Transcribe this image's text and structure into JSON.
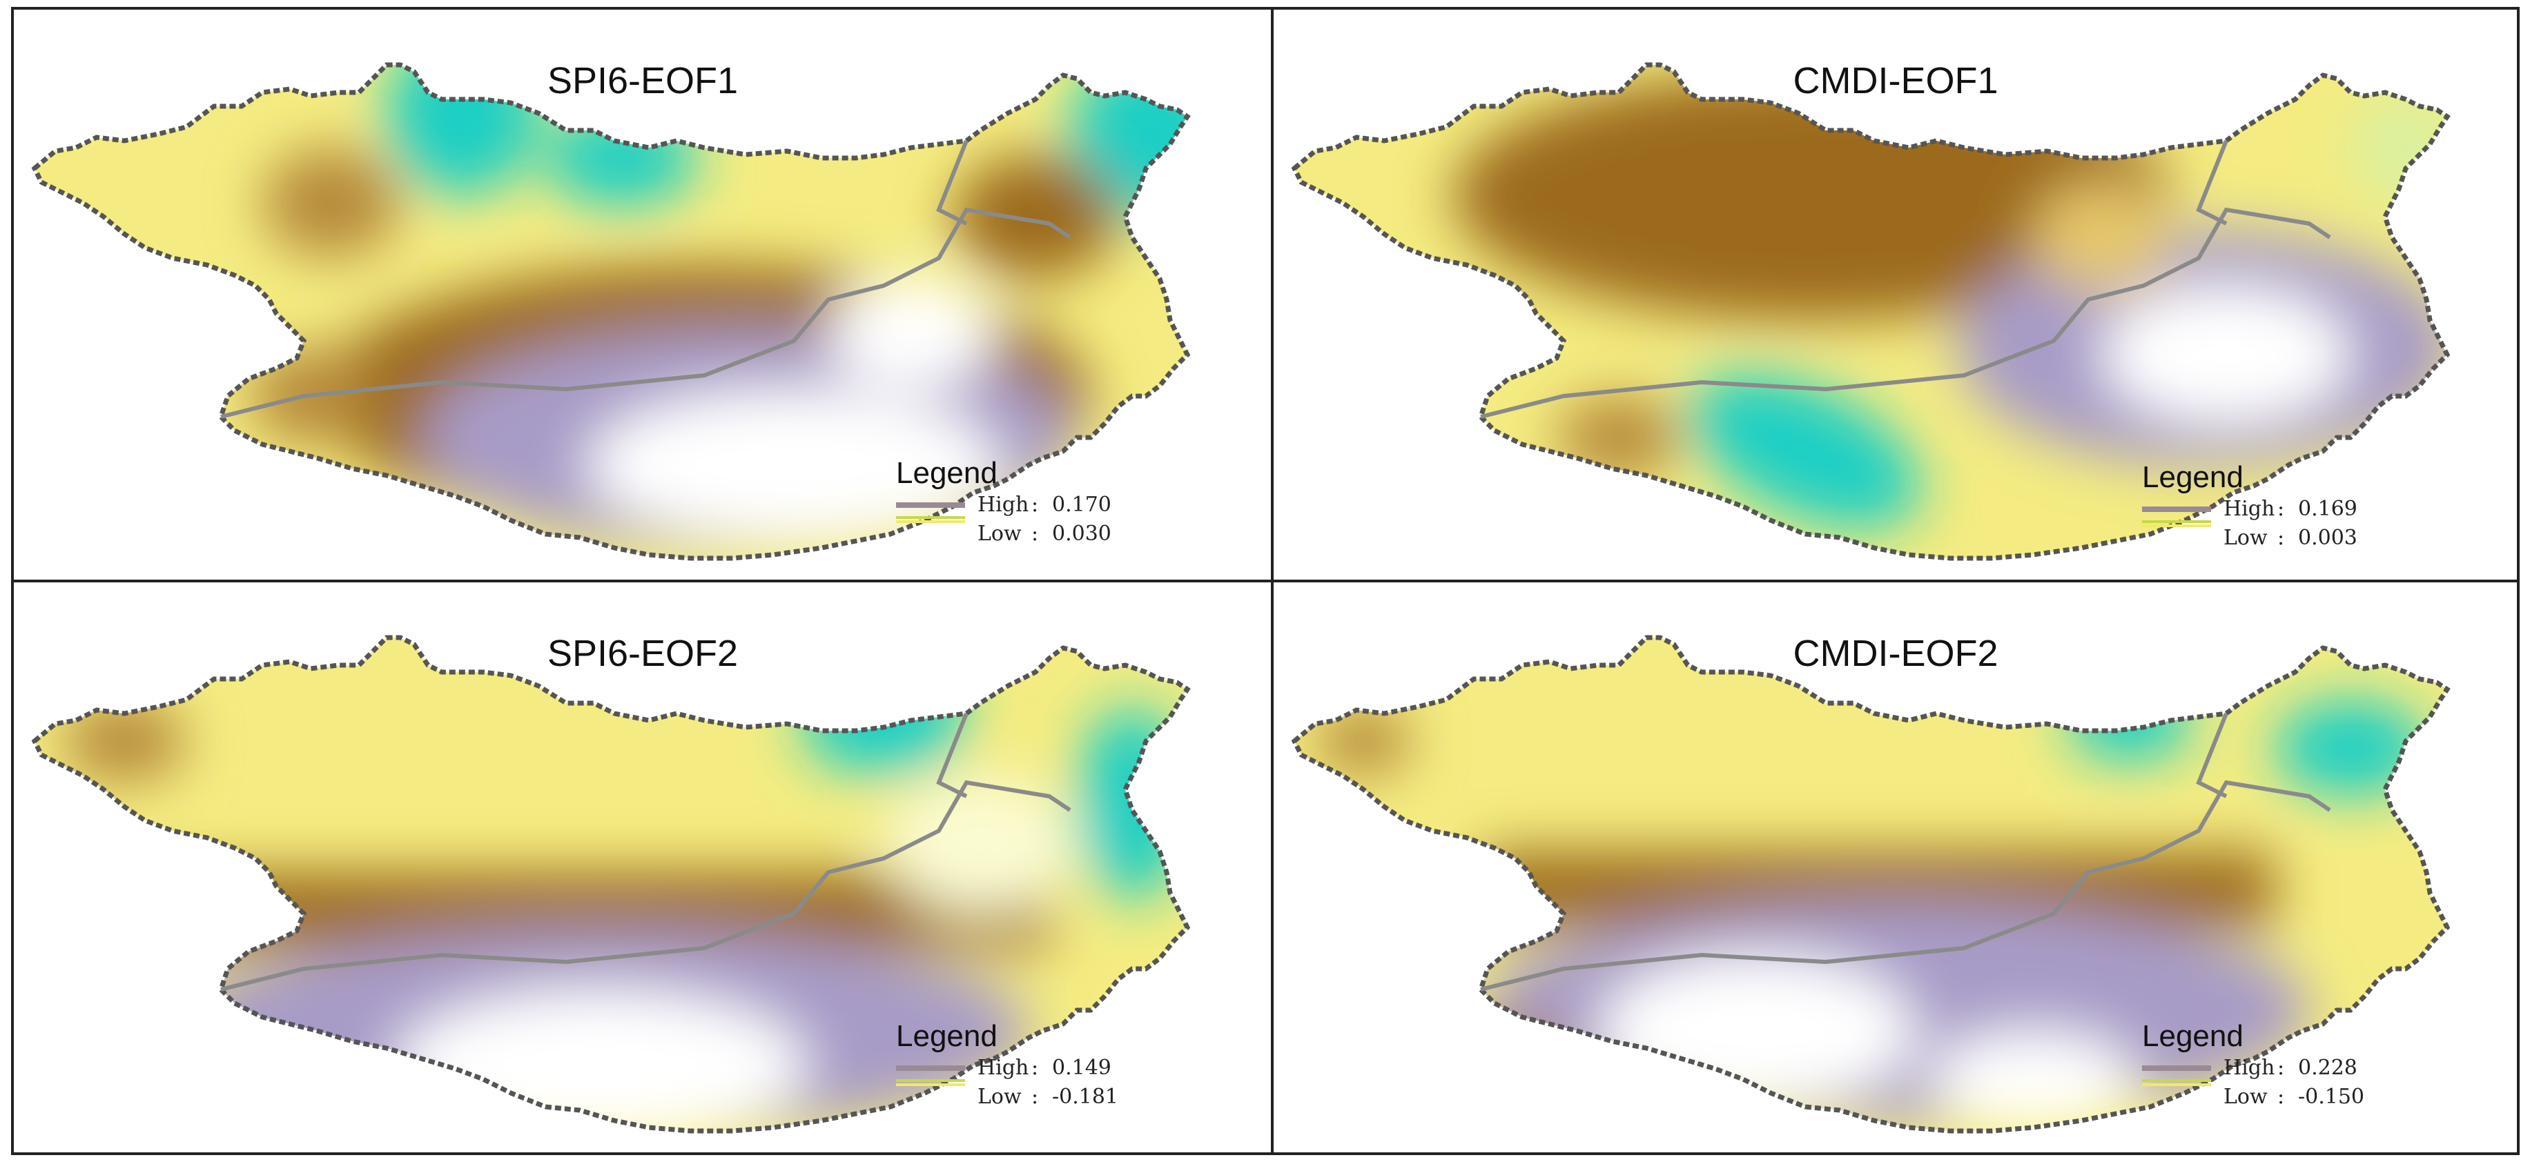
{
  "panels": [
    {
      "title": "SPI6-EOF1",
      "legend": {
        "title": "Legend",
        "high_label": "High",
        "high_value": "0.170",
        "low_label": "Low",
        "low_value": "0.030"
      },
      "pattern": {
        "cyan": "north-central and north-east",
        "white": "south-east"
      }
    },
    {
      "title": "CMDI-EOF1",
      "legend": {
        "title": "Legend",
        "high_label": "High",
        "high_value": "0.169",
        "low_label": "Low",
        "low_value": "0.003"
      },
      "pattern": {
        "cyan": "south-central",
        "white": "south-east"
      }
    },
    {
      "title": "SPI6-EOF2",
      "legend": {
        "title": "Legend",
        "high_label": "High",
        "high_value": "0.149",
        "low_label": "Low",
        "low_value": "-0.181"
      },
      "pattern": {
        "cyan": "north-east",
        "white": "south"
      }
    },
    {
      "title": "CMDI-EOF2",
      "legend": {
        "title": "Legend",
        "high_label": "High",
        "high_value": "0.228",
        "low_label": "Low",
        "low_value": "-0.150"
      },
      "pattern": {
        "cyan": "north-east",
        "white": "south"
      }
    }
  ],
  "colors": {
    "high": "#9a8a95",
    "low_a": "#c7d84a",
    "low_b": "#f0ea6a",
    "white_zone": "#ffffff",
    "purple_zone": "#a79bc7",
    "brown_zone": "#9c6a1e",
    "yellow_zone": "#f4ec82",
    "cyan_zone": "#1ecfc4",
    "border": "#555555",
    "inner_border": "#8a8a8a"
  }
}
